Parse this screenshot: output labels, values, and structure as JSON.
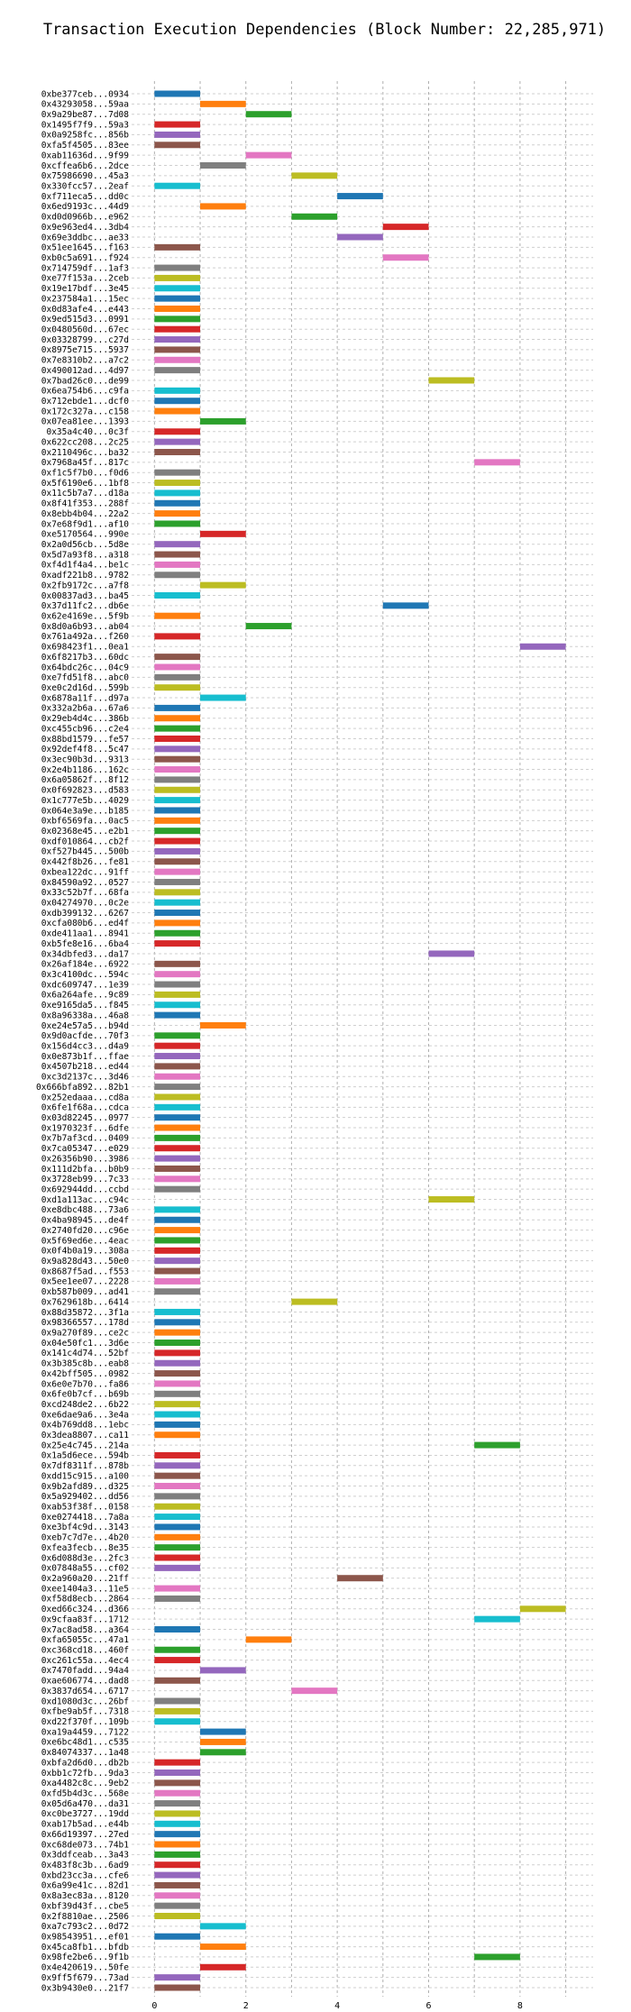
{
  "chart_data": {
    "type": "gantt",
    "title": "Transaction Execution Dependencies (Block Number: 22,285,971)",
    "xlabel": "",
    "ylabel": "",
    "xlim": [
      -0.5,
      9.6
    ],
    "x_ticks": [
      "0",
      "2",
      "4",
      "6",
      "8"
    ],
    "grid": "dashed",
    "legend": "none",
    "palette": [
      "#1f77b4",
      "#ff7f0e",
      "#2ca02c",
      "#d62728",
      "#9467bd",
      "#8c564b",
      "#e377c2",
      "#7f7f7f",
      "#bcbd22",
      "#17becf"
    ],
    "transactions": [
      {
        "label": "0xbe377ceb...0934",
        "start": 0,
        "end": 1
      },
      {
        "label": "0x43293058...59aa",
        "start": 1,
        "end": 2
      },
      {
        "label": "0x9a29be87...7d08",
        "start": 2,
        "end": 3
      },
      {
        "label": "0x1495f7f9...59a3",
        "start": 0,
        "end": 1
      },
      {
        "label": "0x0a9258fc...856b",
        "start": 0,
        "end": 1
      },
      {
        "label": "0xfa5f4505...83ee",
        "start": 0,
        "end": 1
      },
      {
        "label": "0xab11636d...9f99",
        "start": 2,
        "end": 3
      },
      {
        "label": "0xcffea6b6...2dce",
        "start": 1,
        "end": 2
      },
      {
        "label": "0x75986690...45a3",
        "start": 3,
        "end": 4
      },
      {
        "label": "0x330fcc57...2eaf",
        "start": 0,
        "end": 1
      },
      {
        "label": "0xf711eca5...dd0c",
        "start": 4,
        "end": 5
      },
      {
        "label": "0x6ed9193c...44d9",
        "start": 1,
        "end": 2
      },
      {
        "label": "0xd0d0966b...e962",
        "start": 3,
        "end": 4
      },
      {
        "label": "0x9e963ed4...3db4",
        "start": 5,
        "end": 6
      },
      {
        "label": "0x69e3ddbc...ae33",
        "start": 4,
        "end": 5
      },
      {
        "label": "0x51ee1645...f163",
        "start": 0,
        "end": 1
      },
      {
        "label": "0xb0c5a691...f924",
        "start": 5,
        "end": 6
      },
      {
        "label": "0x714759df...1af3",
        "start": 0,
        "end": 1
      },
      {
        "label": "0xe77f153a...2ceb",
        "start": 0,
        "end": 1
      },
      {
        "label": "0x19e17bdf...3e45",
        "start": 0,
        "end": 1
      },
      {
        "label": "0x237584a1...15ec",
        "start": 0,
        "end": 1
      },
      {
        "label": "0x0d83afe4...e443",
        "start": 0,
        "end": 1
      },
      {
        "label": "0x9ed515d3...0991",
        "start": 0,
        "end": 1
      },
      {
        "label": "0x0480560d...67ec",
        "start": 0,
        "end": 1
      },
      {
        "label": "0x03328799...c27d",
        "start": 0,
        "end": 1
      },
      {
        "label": "0x8975e715...5937",
        "start": 0,
        "end": 1
      },
      {
        "label": "0x7e8310b2...a7c2",
        "start": 0,
        "end": 1
      },
      {
        "label": "0x490012ad...4d97",
        "start": 0,
        "end": 1
      },
      {
        "label": "0x7bad26c0...de99",
        "start": 6,
        "end": 7
      },
      {
        "label": "0x6ea754b6...c9fa",
        "start": 0,
        "end": 1
      },
      {
        "label": "0x712ebde1...dcf0",
        "start": 0,
        "end": 1
      },
      {
        "label": "0x172c327a...c158",
        "start": 0,
        "end": 1
      },
      {
        "label": "0x07ea81ee...1393",
        "start": 1,
        "end": 2
      },
      {
        "label": "0x35a4c40...0c3f",
        "start": 0,
        "end": 1
      },
      {
        "label": "0x622cc208...2c25",
        "start": 0,
        "end": 1
      },
      {
        "label": "0x2110496c...ba32",
        "start": 0,
        "end": 1
      },
      {
        "label": "0x7968a45f...817c",
        "start": 7,
        "end": 8
      },
      {
        "label": "0xf1c5f7b0...f0d6",
        "start": 0,
        "end": 1
      },
      {
        "label": "0x5f6190e6...1bf8",
        "start": 0,
        "end": 1
      },
      {
        "label": "0x11c5b7a7...d18a",
        "start": 0,
        "end": 1
      },
      {
        "label": "0x8f41f353...288f",
        "start": 0,
        "end": 1
      },
      {
        "label": "0x8ebb4b04...22a2",
        "start": 0,
        "end": 1
      },
      {
        "label": "0x7e68f9d1...af10",
        "start": 0,
        "end": 1
      },
      {
        "label": "0xe5170564...990e",
        "start": 1,
        "end": 2
      },
      {
        "label": "0x2a0d56cb...5d8e",
        "start": 0,
        "end": 1
      },
      {
        "label": "0x5d7a93f8...a318",
        "start": 0,
        "end": 1
      },
      {
        "label": "0xf4d1f4a4...be1c",
        "start": 0,
        "end": 1
      },
      {
        "label": "0xadf221b8...9782",
        "start": 0,
        "end": 1
      },
      {
        "label": "0x2fb9172c...a7f8",
        "start": 1,
        "end": 2
      },
      {
        "label": "0x00837ad3...ba45",
        "start": 0,
        "end": 1
      },
      {
        "label": "0x37d11fc2...db6e",
        "start": 5,
        "end": 6
      },
      {
        "label": "0x62e4169e...5f9b",
        "start": 0,
        "end": 1
      },
      {
        "label": "0x8d0a6b93...ab04",
        "start": 2,
        "end": 3
      },
      {
        "label": "0x761a492a...f260",
        "start": 0,
        "end": 1
      },
      {
        "label": "0x698423f1...0ea1",
        "start": 8,
        "end": 9
      },
      {
        "label": "0x6f8217b3...60dc",
        "start": 0,
        "end": 1
      },
      {
        "label": "0x64bdc26c...04c9",
        "start": 0,
        "end": 1
      },
      {
        "label": "0xe7fd51f8...abc0",
        "start": 0,
        "end": 1
      },
      {
        "label": "0xe0c2d16d...599b",
        "start": 0,
        "end": 1
      },
      {
        "label": "0x6878a11f...d97a",
        "start": 1,
        "end": 2
      },
      {
        "label": "0x332a2b6a...67a6",
        "start": 0,
        "end": 1
      },
      {
        "label": "0x29eb4d4c...386b",
        "start": 0,
        "end": 1
      },
      {
        "label": "0xc455cb96...c2e4",
        "start": 0,
        "end": 1
      },
      {
        "label": "0x88bd1579...fe57",
        "start": 0,
        "end": 1
      },
      {
        "label": "0x92def4f8...5c47",
        "start": 0,
        "end": 1
      },
      {
        "label": "0x3ec90b3d...9313",
        "start": 0,
        "end": 1
      },
      {
        "label": "0x2e4b1186...162c",
        "start": 0,
        "end": 1
      },
      {
        "label": "0x6a05862f...8f12",
        "start": 0,
        "end": 1
      },
      {
        "label": "0x0f692823...d583",
        "start": 0,
        "end": 1
      },
      {
        "label": "0x1c777e5b...4029",
        "start": 0,
        "end": 1
      },
      {
        "label": "0x064e3a9e...b185",
        "start": 0,
        "end": 1
      },
      {
        "label": "0xbf6569fa...0ac5",
        "start": 0,
        "end": 1
      },
      {
        "label": "0x02368e45...e2b1",
        "start": 0,
        "end": 1
      },
      {
        "label": "0xdf010864...cb2f",
        "start": 0,
        "end": 1
      },
      {
        "label": "0xf527b445...500b",
        "start": 0,
        "end": 1
      },
      {
        "label": "0x442f8b26...fe81",
        "start": 0,
        "end": 1
      },
      {
        "label": "0xbea122dc...91ff",
        "start": 0,
        "end": 1
      },
      {
        "label": "0x84590a92...0527",
        "start": 0,
        "end": 1
      },
      {
        "label": "0x33c52b7f...68fa",
        "start": 0,
        "end": 1
      },
      {
        "label": "0x04274970...0c2e",
        "start": 0,
        "end": 1
      },
      {
        "label": "0xdb399132...6267",
        "start": 0,
        "end": 1
      },
      {
        "label": "0xcfa080b6...ed4f",
        "start": 0,
        "end": 1
      },
      {
        "label": "0xde411aa1...8941",
        "start": 0,
        "end": 1
      },
      {
        "label": "0xb5fe8e16...6ba4",
        "start": 0,
        "end": 1
      },
      {
        "label": "0x34dbfed3...da17",
        "start": 6,
        "end": 7
      },
      {
        "label": "0x26af184e...6922",
        "start": 0,
        "end": 1
      },
      {
        "label": "0x3c4100dc...594c",
        "start": 0,
        "end": 1
      },
      {
        "label": "0xdc609747...1e39",
        "start": 0,
        "end": 1
      },
      {
        "label": "0x6a264afe...9c89",
        "start": 0,
        "end": 1
      },
      {
        "label": "0xe9165da5...f845",
        "start": 0,
        "end": 1
      },
      {
        "label": "0x8a96338a...46a8",
        "start": 0,
        "end": 1
      },
      {
        "label": "0xe24e57a5...b94d",
        "start": 1,
        "end": 2
      },
      {
        "label": "0x9d0acfde...70f3",
        "start": 0,
        "end": 1
      },
      {
        "label": "0x156d4cc3...d4a9",
        "start": 0,
        "end": 1
      },
      {
        "label": "0x0e873b1f...ffae",
        "start": 0,
        "end": 1
      },
      {
        "label": "0x4507b218...ed44",
        "start": 0,
        "end": 1
      },
      {
        "label": "0xc3d2137c...3d46",
        "start": 0,
        "end": 1
      },
      {
        "label": "0x666bfa892...82b1",
        "start": 0,
        "end": 1
      },
      {
        "label": "0x252edaaa...cd8a",
        "start": 0,
        "end": 1
      },
      {
        "label": "0x6fe1f68a...cdca",
        "start": 0,
        "end": 1
      },
      {
        "label": "0x03d82245...0977",
        "start": 0,
        "end": 1
      },
      {
        "label": "0x1970323f...6dfe",
        "start": 0,
        "end": 1
      },
      {
        "label": "0x7b7af3cd...0409",
        "start": 0,
        "end": 1
      },
      {
        "label": "0x7ca05347...e029",
        "start": 0,
        "end": 1
      },
      {
        "label": "0x26356b90...3986",
        "start": 0,
        "end": 1
      },
      {
        "label": "0x111d2bfa...b0b9",
        "start": 0,
        "end": 1
      },
      {
        "label": "0x3728eb99...7c33",
        "start": 0,
        "end": 1
      },
      {
        "label": "0x692944dd...ccbd",
        "start": 0,
        "end": 1
      },
      {
        "label": "0xd1a113ac...c94c",
        "start": 6,
        "end": 7
      },
      {
        "label": "0xe8dbc488...73a6",
        "start": 0,
        "end": 1
      },
      {
        "label": "0x4ba98945...de4f",
        "start": 0,
        "end": 1
      },
      {
        "label": "0x2740fd20...c96e",
        "start": 0,
        "end": 1
      },
      {
        "label": "0x5f69ed6e...4eac",
        "start": 0,
        "end": 1
      },
      {
        "label": "0x0f4b0a19...308a",
        "start": 0,
        "end": 1
      },
      {
        "label": "0x9a828d43...50e0",
        "start": 0,
        "end": 1
      },
      {
        "label": "0x8687f5ad...f553",
        "start": 0,
        "end": 1
      },
      {
        "label": "0x5ee1ee07...2228",
        "start": 0,
        "end": 1
      },
      {
        "label": "0xb587b009...ad41",
        "start": 0,
        "end": 1
      },
      {
        "label": "0x7629618b...6414",
        "start": 3,
        "end": 4
      },
      {
        "label": "0x88d35872...3f1a",
        "start": 0,
        "end": 1
      },
      {
        "label": "0x98366557...178d",
        "start": 0,
        "end": 1
      },
      {
        "label": "0x9a270f89...ce2c",
        "start": 0,
        "end": 1
      },
      {
        "label": "0x04e50fc1...3d6e",
        "start": 0,
        "end": 1
      },
      {
        "label": "0x141c4d74...52bf",
        "start": 0,
        "end": 1
      },
      {
        "label": "0x3b385c8b...eab8",
        "start": 0,
        "end": 1
      },
      {
        "label": "0x42bff505...0982",
        "start": 0,
        "end": 1
      },
      {
        "label": "0x6e0e7b70...fa86",
        "start": 0,
        "end": 1
      },
      {
        "label": "0x6fe0b7cf...b69b",
        "start": 0,
        "end": 1
      },
      {
        "label": "0xcd248de2...6b22",
        "start": 0,
        "end": 1
      },
      {
        "label": "0xe6dae9a6...3e4a",
        "start": 0,
        "end": 1
      },
      {
        "label": "0x4b769dd8...1ebc",
        "start": 0,
        "end": 1
      },
      {
        "label": "0x3dea8807...ca11",
        "start": 0,
        "end": 1
      },
      {
        "label": "0x25e4c745...214a",
        "start": 7,
        "end": 8
      },
      {
        "label": "0x1a5d6ece...594b",
        "start": 0,
        "end": 1
      },
      {
        "label": "0x7df8311f...878b",
        "start": 0,
        "end": 1
      },
      {
        "label": "0xdd15c915...a100",
        "start": 0,
        "end": 1
      },
      {
        "label": "0x9b2afd89...d325",
        "start": 0,
        "end": 1
      },
      {
        "label": "0x5a929402...dd56",
        "start": 0,
        "end": 1
      },
      {
        "label": "0xab53f38f...0158",
        "start": 0,
        "end": 1
      },
      {
        "label": "0xe0274418...7a8a",
        "start": 0,
        "end": 1
      },
      {
        "label": "0xe3bf4c9d...3143",
        "start": 0,
        "end": 1
      },
      {
        "label": "0xeb7c7d7e...4b20",
        "start": 0,
        "end": 1
      },
      {
        "label": "0xfea3fecb...8e35",
        "start": 0,
        "end": 1
      },
      {
        "label": "0x6d088d3e...2fc3",
        "start": 0,
        "end": 1
      },
      {
        "label": "0x07848a55...cf02",
        "start": 0,
        "end": 1
      },
      {
        "label": "0x2a960a20...21ff",
        "start": 4,
        "end": 5
      },
      {
        "label": "0xee1404a3...11e5",
        "start": 0,
        "end": 1
      },
      {
        "label": "0xf58d8ecb...2864",
        "start": 0,
        "end": 1
      },
      {
        "label": "0xed66c324...d366",
        "start": 8,
        "end": 9
      },
      {
        "label": "0x9cfaa83f...1712",
        "start": 7,
        "end": 8
      },
      {
        "label": "0x7ac8ad58...a364",
        "start": 0,
        "end": 1
      },
      {
        "label": "0xfa65055c...47a1",
        "start": 2,
        "end": 3
      },
      {
        "label": "0xc368cd18...460f",
        "start": 0,
        "end": 1
      },
      {
        "label": "0xc261c55a...4ec4",
        "start": 0,
        "end": 1
      },
      {
        "label": "0x7470fadd...94a4",
        "start": 1,
        "end": 2
      },
      {
        "label": "0xae606774...dad8",
        "start": 0,
        "end": 1
      },
      {
        "label": "0x3837d654...6717",
        "start": 3,
        "end": 4
      },
      {
        "label": "0xd1080d3c...26bf",
        "start": 0,
        "end": 1
      },
      {
        "label": "0xfbe9ab5f...7318",
        "start": 0,
        "end": 1
      },
      {
        "label": "0xd22f370f...109b",
        "start": 0,
        "end": 1
      },
      {
        "label": "0xa19a4459...7122",
        "start": 1,
        "end": 2
      },
      {
        "label": "0xe6bc48d1...c535",
        "start": 1,
        "end": 2
      },
      {
        "label": "0x84074337...1a48",
        "start": 1,
        "end": 2
      },
      {
        "label": "0xbfa2d6d0...db2b",
        "start": 0,
        "end": 1
      },
      {
        "label": "0xbb1c72fb...9da3",
        "start": 0,
        "end": 1
      },
      {
        "label": "0xa4482c8c...9eb2",
        "start": 0,
        "end": 1
      },
      {
        "label": "0xfd5b4d3c...568e",
        "start": 0,
        "end": 1
      },
      {
        "label": "0x05d6a470...da31",
        "start": 0,
        "end": 1
      },
      {
        "label": "0xc0be3727...19dd",
        "start": 0,
        "end": 1
      },
      {
        "label": "0xab17b5ad...e44b",
        "start": 0,
        "end": 1
      },
      {
        "label": "0x66d19397...27ed",
        "start": 0,
        "end": 1
      },
      {
        "label": "0xc68de073...74b1",
        "start": 0,
        "end": 1
      },
      {
        "label": "0x3ddfceab...3a43",
        "start": 0,
        "end": 1
      },
      {
        "label": "0x483f8c3b...6ad9",
        "start": 0,
        "end": 1
      },
      {
        "label": "0xbd23cc3a...cfe6",
        "start": 0,
        "end": 1
      },
      {
        "label": "0x6a99e41c...82d1",
        "start": 0,
        "end": 1
      },
      {
        "label": "0x8a3ec83a...8120",
        "start": 0,
        "end": 1
      },
      {
        "label": "0xbf39d43f...cbe5",
        "start": 0,
        "end": 1
      },
      {
        "label": "0x2f8810ae...2506",
        "start": 0,
        "end": 1
      },
      {
        "label": "0xa7c793c2...0d72",
        "start": 1,
        "end": 2
      },
      {
        "label": "0x98543951...ef01",
        "start": 0,
        "end": 1
      },
      {
        "label": "0x45ca8fb1...bfdb",
        "start": 1,
        "end": 2
      },
      {
        "label": "0x98fe2be6...9f1b",
        "start": 7,
        "end": 8
      },
      {
        "label": "0x4e420619...50fe",
        "start": 1,
        "end": 2
      },
      {
        "label": "0x9ff5f679...73ad",
        "start": 0,
        "end": 1
      },
      {
        "label": "0x3b9430e0...21f7",
        "start": 0,
        "end": 1
      }
    ]
  }
}
